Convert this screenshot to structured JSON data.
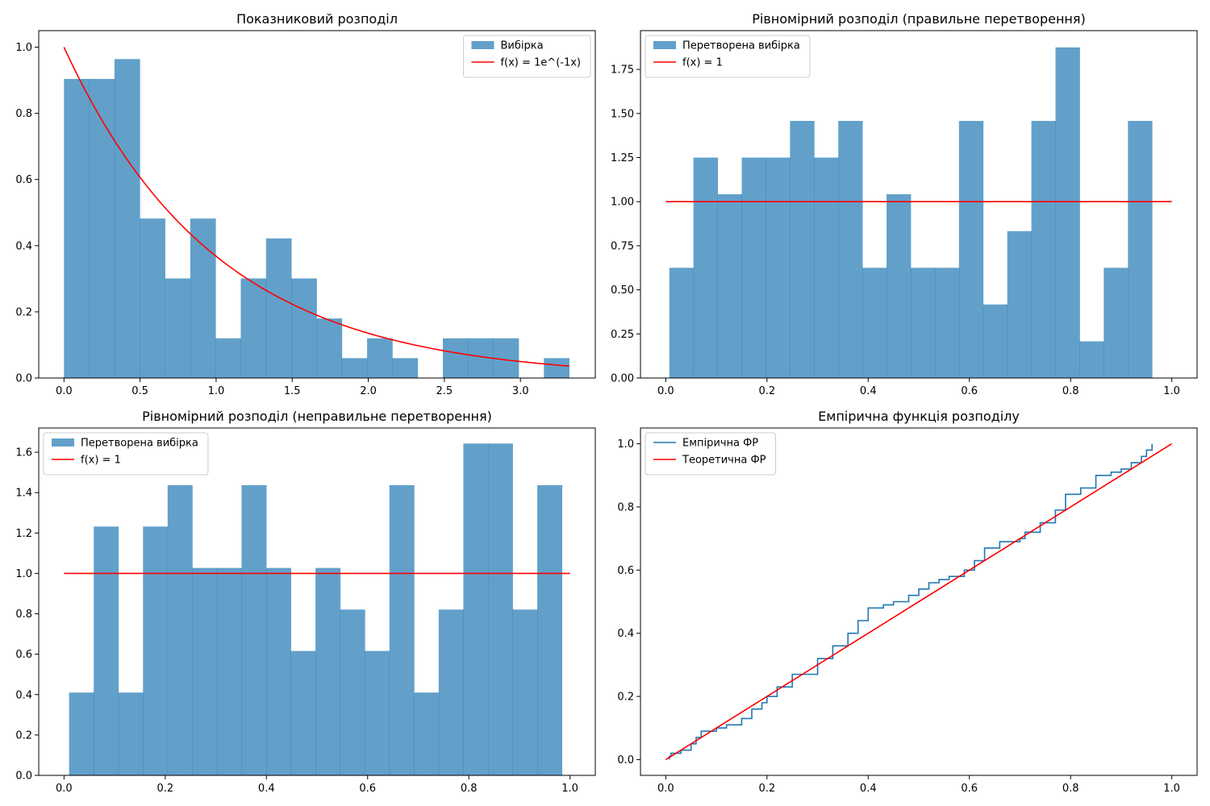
{
  "colors": {
    "histogram": "#1f77b4",
    "pdf_line": "#ff0000",
    "ecdf_line": "#1f77b4"
  },
  "chart_data": [
    {
      "type": "bar",
      "title": "Показниковий розподіл",
      "xlim": [
        -0.166,
        3.492
      ],
      "ylim": [
        0,
        1.05
      ],
      "xticks": [
        "0.0",
        "0.5",
        "1.0",
        "1.5",
        "2.0",
        "2.5",
        "3.0"
      ],
      "yticks": [
        "0.0",
        "0.2",
        "0.4",
        "0.6",
        "0.8",
        "1.0"
      ],
      "bins": {
        "edges": [
          0.0,
          0.166,
          0.332,
          0.498,
          0.664,
          0.83,
          0.996,
          1.162,
          1.328,
          1.494,
          1.66,
          1.826,
          1.992,
          2.158,
          2.324,
          2.49,
          2.656,
          2.822,
          2.988,
          3.154,
          3.32
        ],
        "values": [
          0.904,
          0.904,
          0.964,
          0.482,
          0.301,
          0.482,
          0.12,
          0.301,
          0.422,
          0.301,
          0.18,
          0.06,
          0.12,
          0.06,
          0.0,
          0.12,
          0.12,
          0.12,
          0.0,
          0.06
        ]
      },
      "lines": [
        {
          "kind": "function",
          "fn": "exp",
          "rate": 1,
          "x_range": [
            0.0,
            3.32
          ]
        }
      ],
      "legend": {
        "position": "top-right",
        "entries": [
          {
            "label": "Вибірка",
            "kind": "patch"
          },
          {
            "label": "f(x) = 1e^(-1x)",
            "kind": "line"
          }
        ]
      }
    },
    {
      "type": "bar",
      "title": "Рівномірний розподіл (правильне перетворення)",
      "xlim": [
        -0.05,
        1.05
      ],
      "ylim": [
        0,
        1.97
      ],
      "xticks": [
        "0.0",
        "0.2",
        "0.4",
        "0.6",
        "0.8",
        "1.0"
      ],
      "yticks": [
        "0.00",
        "0.25",
        "0.50",
        "0.75",
        "1.00",
        "1.25",
        "1.50",
        "1.75"
      ],
      "bins": {
        "edges": [
          0.007,
          0.0547,
          0.1024,
          0.1501,
          0.1978,
          0.2455,
          0.2932,
          0.3409,
          0.3886,
          0.4363,
          0.484,
          0.5317,
          0.5794,
          0.6271,
          0.6748,
          0.7225,
          0.7702,
          0.8179,
          0.8656,
          0.9133,
          0.961
        ],
        "values": [
          0.625,
          1.25,
          1.042,
          1.25,
          1.25,
          1.458,
          1.25,
          1.458,
          0.625,
          1.042,
          0.625,
          0.625,
          1.458,
          0.417,
          0.833,
          1.458,
          1.875,
          0.208,
          0.625,
          1.458
        ]
      },
      "lines": [
        {
          "kind": "points",
          "x": [
            0.0,
            1.0
          ],
          "y": [
            1.0,
            1.0
          ]
        }
      ],
      "legend": {
        "position": "top-left",
        "entries": [
          {
            "label": "Перетворена вибірка",
            "kind": "patch"
          },
          {
            "label": "f(x) = 1",
            "kind": "line"
          }
        ]
      }
    },
    {
      "type": "bar",
      "title": "Рівномірний розподіл (неправильне перетворення)",
      "xlim": [
        -0.05,
        1.05
      ],
      "ylim": [
        0,
        1.72
      ],
      "xticks": [
        "0.0",
        "0.2",
        "0.4",
        "0.6",
        "0.8",
        "1.0"
      ],
      "yticks": [
        "0.0",
        "0.2",
        "0.4",
        "0.6",
        "0.8",
        "1.0",
        "1.2",
        "1.4",
        "1.6"
      ],
      "bins": {
        "edges": [
          0.01,
          0.0587,
          0.1074,
          0.1561,
          0.2048,
          0.2535,
          0.3022,
          0.3509,
          0.3996,
          0.4483,
          0.497,
          0.5457,
          0.5944,
          0.6431,
          0.6918,
          0.7405,
          0.7892,
          0.8379,
          0.8866,
          0.9353,
          0.984
        ],
        "values": [
          0.41,
          1.232,
          0.41,
          1.232,
          1.437,
          1.027,
          1.027,
          1.437,
          1.027,
          0.616,
          1.027,
          0.821,
          0.616,
          1.437,
          0.41,
          0.821,
          1.643,
          1.643,
          0.821,
          1.437
        ]
      },
      "lines": [
        {
          "kind": "points",
          "x": [
            0.0,
            1.0
          ],
          "y": [
            1.0,
            1.0
          ]
        }
      ],
      "legend": {
        "position": "top-left",
        "entries": [
          {
            "label": "Перетворена вибірка",
            "kind": "patch"
          },
          {
            "label": "f(x) = 1",
            "kind": "line"
          }
        ]
      }
    },
    {
      "type": "line",
      "title": "Емпірична функція розподілу",
      "xlim": [
        -0.05,
        1.05
      ],
      "ylim": [
        -0.05,
        1.05
      ],
      "xticks": [
        "0.0",
        "0.2",
        "0.4",
        "0.6",
        "0.8",
        "1.0"
      ],
      "yticks": [
        "0.0",
        "0.2",
        "0.4",
        "0.6",
        "0.8",
        "1.0"
      ],
      "series": [
        {
          "name": "Емпірична ФР",
          "step": true,
          "x": [
            0.007,
            0.01,
            0.03,
            0.05,
            0.06,
            0.07,
            0.1,
            0.12,
            0.15,
            0.17,
            0.19,
            0.2,
            0.22,
            0.25,
            0.3,
            0.33,
            0.36,
            0.38,
            0.4,
            0.43,
            0.45,
            0.48,
            0.5,
            0.52,
            0.54,
            0.56,
            0.59,
            0.61,
            0.63,
            0.66,
            0.7,
            0.71,
            0.74,
            0.77,
            0.79,
            0.82,
            0.85,
            0.88,
            0.9,
            0.92,
            0.94,
            0.95,
            0.961
          ],
          "y": [
            0.01,
            0.02,
            0.03,
            0.05,
            0.07,
            0.09,
            0.1,
            0.11,
            0.13,
            0.16,
            0.18,
            0.2,
            0.23,
            0.27,
            0.32,
            0.36,
            0.4,
            0.44,
            0.48,
            0.49,
            0.5,
            0.52,
            0.54,
            0.56,
            0.57,
            0.58,
            0.6,
            0.63,
            0.67,
            0.69,
            0.7,
            0.72,
            0.75,
            0.79,
            0.84,
            0.86,
            0.9,
            0.91,
            0.92,
            0.94,
            0.96,
            0.98,
            1.0
          ]
        },
        {
          "name": "Теоретична ФР",
          "x": [
            0.0,
            1.0
          ],
          "y": [
            0.0,
            1.0
          ]
        }
      ],
      "legend": {
        "position": "top-left",
        "entries": [
          {
            "label": "Емпірична ФР",
            "kind": "line",
            "color_key": "ecdf_line"
          },
          {
            "label": "Теоретична ФР",
            "kind": "line"
          }
        ]
      }
    }
  ]
}
